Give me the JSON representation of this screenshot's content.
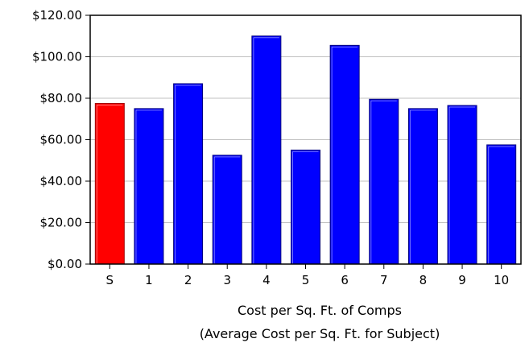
{
  "chart_data": {
    "type": "bar",
    "categories": [
      "S",
      "1",
      "2",
      "3",
      "4",
      "5",
      "6",
      "7",
      "8",
      "9",
      "10"
    ],
    "values": [
      77.5,
      75,
      87,
      52.5,
      110,
      55,
      105.5,
      79.5,
      75,
      76.5,
      57.5
    ],
    "highlight_category": "S",
    "title": "",
    "xlabel_lines": [
      "Cost per Sq. Ft. of Comps",
      "(Average Cost per Sq. Ft. for Subject)"
    ],
    "ylabel": "",
    "ylim": [
      0,
      120
    ],
    "y_ticks": [
      "$0.00",
      "$20.00",
      "$40.00",
      "$60.00",
      "$80.00",
      "$100.00",
      "$120.00"
    ],
    "y_tick_values": [
      0,
      20,
      40,
      60,
      80,
      100,
      120
    ],
    "grid": "horizontal",
    "legend": "none",
    "colors": {
      "bar": "#0000ff",
      "bar_edge": "#00007a",
      "bar_highlight": "#ff0000",
      "bar_highlight_edge": "#a00000",
      "grid": "#c0c0c0",
      "axis": "#000000"
    }
  }
}
